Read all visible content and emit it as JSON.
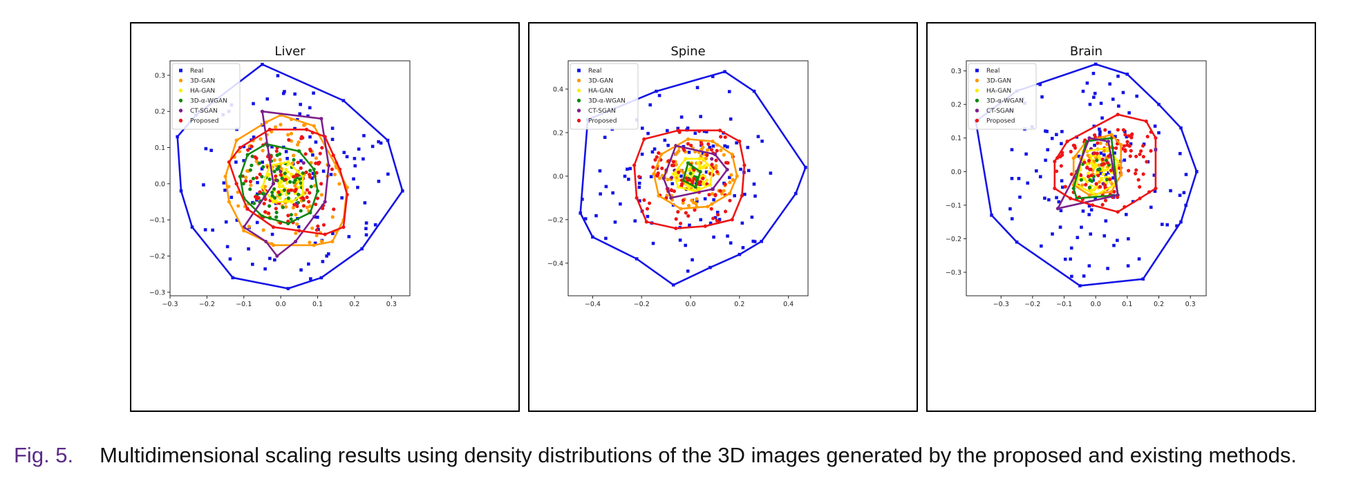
{
  "caption": {
    "label": "Fig. 5.",
    "text": "Multidimensional scaling results using density distributions of the 3D images generated by the proposed and existing methods."
  },
  "legend_entries": [
    "Real",
    "3D-GAN",
    "HA-GAN",
    "3D-α-WGAN",
    "CT-SGAN",
    "Proposed"
  ],
  "series_colors": {
    "Real": "#1414e6",
    "3D-GAN": "#ff9a00",
    "HA-GAN": "#ffee00",
    "3D-α-WGAN": "#118811",
    "CT-SGAN": "#7d1f8c",
    "Proposed": "#ee1515"
  },
  "chart_data": [
    {
      "type": "scatter",
      "title": "Liver",
      "xlim": [
        -0.3,
        0.35
      ],
      "ylim": [
        -0.31,
        0.34
      ],
      "xticks": [
        -0.3,
        -0.2,
        -0.1,
        0.0,
        0.1,
        0.2,
        0.3
      ],
      "yticks": [
        -0.3,
        -0.2,
        -0.1,
        0.0,
        0.1,
        0.2,
        0.3
      ],
      "legend_position": "upper-left",
      "series": [
        {
          "name": "Real",
          "hull": [
            [
              -0.05,
              0.33
            ],
            [
              0.17,
              0.23
            ],
            [
              0.29,
              0.12
            ],
            [
              0.33,
              -0.02
            ],
            [
              0.22,
              -0.18
            ],
            [
              0.11,
              -0.26
            ],
            [
              0.02,
              -0.29
            ],
            [
              -0.13,
              -0.26
            ],
            [
              -0.24,
              -0.12
            ],
            [
              -0.27,
              -0.02
            ],
            [
              -0.28,
              0.13
            ],
            [
              -0.23,
              0.19
            ]
          ],
          "center": [
            0.0,
            0.0
          ],
          "spread": 0.2,
          "n": 110
        },
        {
          "name": "3D-GAN",
          "hull": [
            [
              -0.04,
              0.17
            ],
            [
              0.0,
              0.19
            ],
            [
              0.09,
              0.16
            ],
            [
              0.15,
              0.05
            ],
            [
              0.18,
              -0.01
            ],
            [
              0.17,
              -0.1
            ],
            [
              0.14,
              -0.16
            ],
            [
              0.09,
              -0.17
            ],
            [
              -0.02,
              -0.17
            ],
            [
              -0.1,
              -0.13
            ],
            [
              -0.14,
              -0.05
            ],
            [
              -0.15,
              0.02
            ],
            [
              -0.12,
              0.12
            ]
          ],
          "center": [
            0.01,
            0.01
          ],
          "spread": 0.11,
          "n": 90
        },
        {
          "name": "HA-GAN",
          "hull": [
            [
              -0.03,
              0.05
            ],
            [
              0.02,
              0.06
            ],
            [
              0.06,
              0.02
            ],
            [
              0.06,
              -0.03
            ],
            [
              0.03,
              -0.05
            ],
            [
              -0.02,
              -0.05
            ],
            [
              -0.05,
              -0.01
            ]
          ],
          "center": [
            0.01,
            0.0
          ],
          "spread": 0.04,
          "n": 60
        },
        {
          "name": "3D-α-WGAN",
          "hull": [
            [
              -0.04,
              0.11
            ],
            [
              0.05,
              0.09
            ],
            [
              0.09,
              0.04
            ],
            [
              0.1,
              -0.02
            ],
            [
              0.08,
              -0.08
            ],
            [
              0.02,
              -0.11
            ],
            [
              -0.05,
              -0.09
            ],
            [
              -0.1,
              -0.04
            ],
            [
              -0.11,
              0.02
            ],
            [
              -0.09,
              0.08
            ]
          ],
          "center": [
            0.0,
            0.0
          ],
          "spread": 0.07,
          "n": 70
        },
        {
          "name": "CT-SGAN",
          "hull": [
            [
              -0.05,
              0.2
            ],
            [
              0.11,
              0.18
            ],
            [
              0.13,
              0.05
            ],
            [
              0.12,
              -0.05
            ],
            [
              0.04,
              -0.16
            ],
            [
              -0.01,
              -0.2
            ],
            [
              -0.04,
              -0.16
            ],
            [
              -0.1,
              -0.12
            ],
            [
              -0.02,
              0.0
            ]
          ],
          "center": [
            0.04,
            0.03
          ],
          "spread": 0.05,
          "n": 4
        },
        {
          "name": "Proposed",
          "hull": [
            [
              -0.03,
              0.15
            ],
            [
              0.07,
              0.15
            ],
            [
              0.12,
              0.13
            ],
            [
              0.16,
              0.04
            ],
            [
              0.18,
              -0.03
            ],
            [
              0.17,
              -0.12
            ],
            [
              0.12,
              -0.14
            ],
            [
              0.05,
              -0.13
            ],
            [
              -0.02,
              -0.12
            ],
            [
              -0.09,
              -0.07
            ],
            [
              -0.12,
              0.0
            ],
            [
              -0.14,
              0.06
            ],
            [
              -0.11,
              0.1
            ]
          ],
          "center": [
            0.02,
            0.0
          ],
          "spread": 0.1,
          "n": 90
        }
      ]
    },
    {
      "type": "scatter",
      "title": "Spine",
      "xlim": [
        -0.5,
        0.48
      ],
      "ylim": [
        -0.55,
        0.53
      ],
      "xticks": [
        -0.4,
        -0.2,
        0.0,
        0.2,
        0.4
      ],
      "yticks": [
        -0.4,
        -0.2,
        0.0,
        0.2,
        0.4
      ],
      "legend_position": "upper-left",
      "series": [
        {
          "name": "Real",
          "hull": [
            [
              0.14,
              0.48
            ],
            [
              0.26,
              0.39
            ],
            [
              0.47,
              0.04
            ],
            [
              0.43,
              -0.08
            ],
            [
              0.29,
              -0.3
            ],
            [
              0.2,
              -0.36
            ],
            [
              0.08,
              -0.42
            ],
            [
              -0.07,
              -0.5
            ],
            [
              -0.22,
              -0.38
            ],
            [
              -0.4,
              -0.28
            ],
            [
              -0.45,
              -0.17
            ],
            [
              -0.42,
              0.26
            ],
            [
              -0.14,
              0.39
            ]
          ],
          "center": [
            0.0,
            0.0
          ],
          "spread": 0.27,
          "n": 110
        },
        {
          "name": "3D-GAN",
          "hull": [
            [
              -0.01,
              0.17
            ],
            [
              0.09,
              0.16
            ],
            [
              0.17,
              0.1
            ],
            [
              0.19,
              0.0
            ],
            [
              0.16,
              -0.08
            ],
            [
              0.07,
              -0.14
            ],
            [
              -0.04,
              -0.15
            ],
            [
              -0.13,
              -0.09
            ],
            [
              -0.15,
              0.01
            ],
            [
              -0.12,
              0.1
            ]
          ],
          "center": [
            0.01,
            0.0
          ],
          "spread": 0.1,
          "n": 80
        },
        {
          "name": "HA-GAN",
          "hull": [
            [
              -0.02,
              0.08
            ],
            [
              0.05,
              0.08
            ],
            [
              0.09,
              0.03
            ],
            [
              0.08,
              -0.04
            ],
            [
              0.02,
              -0.07
            ],
            [
              -0.05,
              -0.05
            ],
            [
              -0.07,
              0.01
            ]
          ],
          "center": [
            0.01,
            0.0
          ],
          "spread": 0.05,
          "n": 55
        },
        {
          "name": "3D-α-WGAN",
          "hull": [
            [
              -0.01,
              0.06
            ],
            [
              0.04,
              0.02
            ],
            [
              0.02,
              -0.05
            ],
            [
              -0.03,
              -0.02
            ]
          ],
          "center": [
            0.0,
            0.0
          ],
          "spread": 0.03,
          "n": 10
        },
        {
          "name": "CT-SGAN",
          "hull": [
            [
              -0.06,
              0.14
            ],
            [
              0.1,
              0.1
            ],
            [
              0.15,
              0.03
            ],
            [
              0.09,
              -0.06
            ],
            [
              -0.08,
              -0.1
            ],
            [
              -0.11,
              -0.01
            ]
          ],
          "center": [
            0.01,
            0.01
          ],
          "spread": 0.04,
          "n": 4
        },
        {
          "name": "Proposed",
          "hull": [
            [
              -0.05,
              0.21
            ],
            [
              0.12,
              0.21
            ],
            [
              0.2,
              0.16
            ],
            [
              0.22,
              0.05
            ],
            [
              0.21,
              -0.09
            ],
            [
              0.17,
              -0.2
            ],
            [
              0.06,
              -0.23
            ],
            [
              -0.06,
              -0.24
            ],
            [
              -0.18,
              -0.21
            ],
            [
              -0.22,
              -0.1
            ],
            [
              -0.23,
              0.05
            ],
            [
              -0.19,
              0.17
            ]
          ],
          "center": [
            0.0,
            -0.01
          ],
          "spread": 0.13,
          "n": 90
        }
      ]
    },
    {
      "type": "scatter",
      "title": "Brain",
      "xlim": [
        -0.41,
        0.35
      ],
      "ylim": [
        -0.37,
        0.33
      ],
      "xticks": [
        -0.3,
        -0.2,
        -0.1,
        0.0,
        0.1,
        0.2,
        0.3
      ],
      "yticks": [
        -0.3,
        -0.2,
        -0.1,
        0.0,
        0.1,
        0.2,
        0.3
      ],
      "legend_position": "upper-left",
      "series": [
        {
          "name": "Real",
          "hull": [
            [
              0.0,
              0.32
            ],
            [
              0.1,
              0.29
            ],
            [
              0.2,
              0.2
            ],
            [
              0.27,
              0.13
            ],
            [
              0.32,
              0.0
            ],
            [
              0.27,
              -0.15
            ],
            [
              0.15,
              -0.32
            ],
            [
              -0.05,
              -0.34
            ],
            [
              -0.25,
              -0.21
            ],
            [
              -0.33,
              -0.13
            ],
            [
              -0.38,
              0.15
            ],
            [
              -0.25,
              0.24
            ]
          ],
          "center": [
            -0.02,
            -0.01
          ],
          "spread": 0.2,
          "n": 120
        },
        {
          "name": "3D-GAN",
          "hull": [
            [
              -0.03,
              0.09
            ],
            [
              0.05,
              0.11
            ],
            [
              0.08,
              0.08
            ],
            [
              0.08,
              -0.01
            ],
            [
              0.05,
              -0.06
            ],
            [
              -0.02,
              -0.07
            ],
            [
              -0.07,
              -0.04
            ],
            [
              -0.07,
              0.04
            ]
          ],
          "center": [
            0.0,
            0.01
          ],
          "spread": 0.05,
          "n": 40
        },
        {
          "name": "HA-GAN",
          "hull": [
            [
              -0.04,
              0.06
            ],
            [
              0.04,
              0.07
            ],
            [
              0.07,
              0.03
            ],
            [
              0.06,
              -0.04
            ],
            [
              0.0,
              -0.07
            ],
            [
              -0.06,
              -0.04
            ]
          ],
          "center": [
            0.0,
            0.0
          ],
          "spread": 0.04,
          "n": 50
        },
        {
          "name": "3D-α-WGAN",
          "hull": [
            [
              -0.03,
              0.09
            ],
            [
              0.05,
              0.1
            ],
            [
              0.07,
              -0.07
            ],
            [
              -0.06,
              -0.08
            ],
            [
              -0.07,
              -0.05
            ]
          ],
          "center": [
            0.0,
            0.0
          ],
          "spread": 0.04,
          "n": 14
        },
        {
          "name": "CT-SGAN",
          "hull": [
            [
              -0.02,
              0.1
            ],
            [
              0.04,
              0.09
            ],
            [
              0.07,
              -0.07
            ],
            [
              -0.12,
              -0.11
            ],
            [
              -0.06,
              0.0
            ]
          ],
          "center": [
            0.0,
            0.0
          ],
          "spread": 0.04,
          "n": 4
        },
        {
          "name": "Proposed",
          "hull": [
            [
              0.07,
              0.17
            ],
            [
              0.16,
              0.15
            ],
            [
              0.19,
              0.1
            ],
            [
              0.19,
              -0.05
            ],
            [
              0.14,
              -0.08
            ],
            [
              0.07,
              -0.12
            ],
            [
              -0.01,
              -0.1
            ],
            [
              -0.08,
              -0.08
            ],
            [
              -0.13,
              -0.05
            ],
            [
              -0.13,
              0.03
            ],
            [
              -0.09,
              0.09
            ]
          ],
          "center": [
            0.04,
            0.03
          ],
          "spread": 0.1,
          "n": 100
        }
      ]
    }
  ]
}
